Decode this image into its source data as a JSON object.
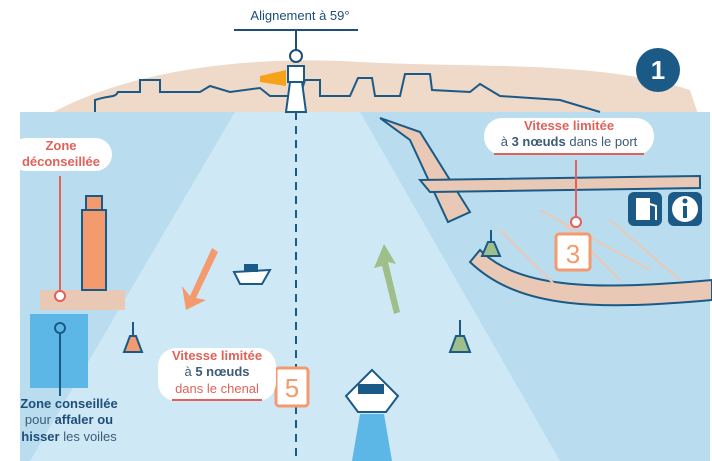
{
  "alignment_label": "Alignement à 59°",
  "step_number": "1",
  "zone_discouraged": {
    "line1": "Zone",
    "line2": "déconseillée"
  },
  "port_speed": {
    "line1": "Vitesse limitée",
    "prefix": "à ",
    "value": "3 nœuds",
    "suffix": " dans le port",
    "sign": "3"
  },
  "channel_speed": {
    "line1": "Vitesse limitée",
    "prefix": "à ",
    "value": "5 nœuds",
    "line3": "dans le chenal",
    "sign": "5"
  },
  "zone_recommended": {
    "line1": "Zone conseillée",
    "pre": "pour ",
    "bold1": "affaler ou",
    "bold2": "hisser",
    "post": " les voiles"
  },
  "icons": [
    "lighthouse-icon",
    "fuel-pump-icon",
    "info-icon",
    "boat-icon",
    "buoy-icon",
    "arrow-icon"
  ],
  "colors": {
    "sea": "#a9d8ee",
    "channel": "#cbe7f5",
    "sand": "#e9c9b5",
    "orange": "#f39a6e",
    "red": "#e0625a",
    "navy": "#1b5a86",
    "green": "#9fbf8a",
    "lighthouse": "#f7a21b"
  }
}
